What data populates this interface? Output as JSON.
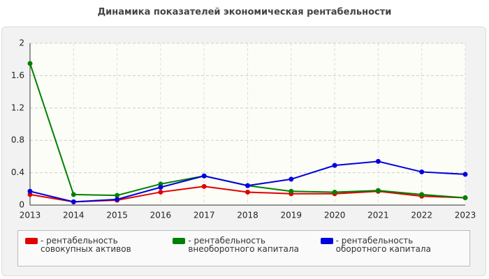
{
  "chart_data": {
    "type": "line",
    "title": "Динамика показателей экономическая рентабельности",
    "categories": [
      "2013",
      "2014",
      "2015",
      "2016",
      "2017",
      "2018",
      "2019",
      "2020",
      "2021",
      "2022",
      "2023"
    ],
    "series": [
      {
        "name": "- рентабельность совокупных активов",
        "color": "#e00000",
        "values": [
          0.13,
          0.04,
          0.06,
          0.16,
          0.23,
          0.16,
          0.14,
          0.14,
          0.17,
          0.11,
          0.09
        ]
      },
      {
        "name": "- рентабельность внеоборотного капитала",
        "color": "#008000",
        "values": [
          1.75,
          0.13,
          0.12,
          0.26,
          0.36,
          0.24,
          0.17,
          0.16,
          0.18,
          0.13,
          0.09
        ]
      },
      {
        "name": "- рентабельность оборотного капитала",
        "color": "#0000e0",
        "values": [
          0.17,
          0.04,
          0.07,
          0.22,
          0.36,
          0.24,
          0.32,
          0.49,
          0.54,
          0.41,
          0.38
        ]
      }
    ],
    "ylim": [
      0,
      2
    ],
    "yticks": [
      0,
      0.4,
      0.8,
      1.2,
      1.6,
      2
    ],
    "grid": true
  }
}
